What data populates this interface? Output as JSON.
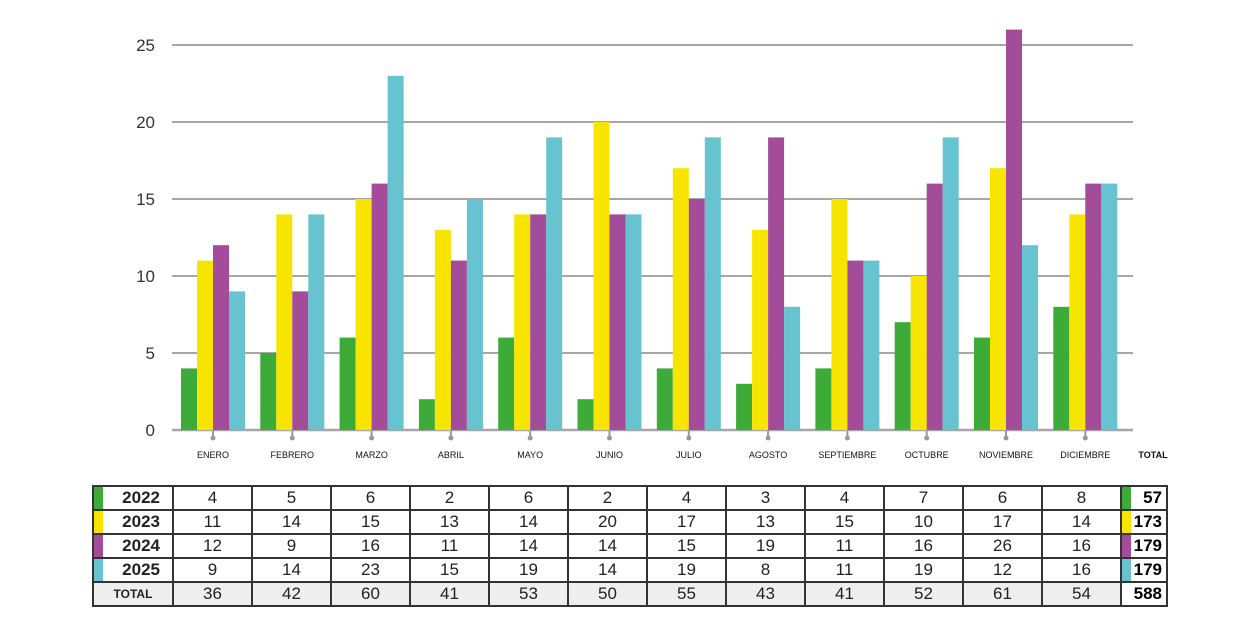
{
  "chart_data": {
    "type": "bar",
    "categories": [
      "ENERO",
      "FEBRERO",
      "MARZO",
      "ABRIL",
      "MAYO",
      "JUNIO",
      "JULIO",
      "AGOSTO",
      "SEPTIEMBRE",
      "OCTUBRE",
      "NOVIEMBRE",
      "DICIEMBRE"
    ],
    "series": [
      {
        "name": "2022",
        "color": "#3dab37",
        "values": [
          4,
          5,
          6,
          2,
          6,
          2,
          4,
          3,
          4,
          7,
          6,
          8
        ],
        "total": "57"
      },
      {
        "name": "2023",
        "color": "#f7e500",
        "values": [
          11,
          14,
          15,
          13,
          14,
          20,
          17,
          13,
          15,
          10,
          17,
          14
        ],
        "total": "173"
      },
      {
        "name": "2024",
        "color": "#a24c9a",
        "values": [
          12,
          9,
          16,
          11,
          14,
          14,
          15,
          19,
          11,
          16,
          26,
          16
        ],
        "total": "179"
      },
      {
        "name": "2025",
        "color": "#66c3cf",
        "values": [
          9,
          14,
          23,
          15,
          19,
          14,
          19,
          8,
          11,
          19,
          12,
          16
        ],
        "total": "179"
      }
    ],
    "yticks": [
      "0",
      "5",
      "10",
      "15",
      "20",
      "25"
    ],
    "ylim": [
      0,
      26
    ],
    "grid": true,
    "title": "",
    "xlabel": "",
    "ylabel": ""
  },
  "table": {
    "total_header": "TOTAL",
    "total_label": "TOTAL",
    "month_totals": [
      "36",
      "42",
      "60",
      "41",
      "53",
      "50",
      "55",
      "43",
      "41",
      "52",
      "61",
      "54"
    ],
    "grand_total": "588"
  },
  "colors": {
    "grid": "#a6a6a6",
    "axis_tick": "#999999",
    "table_border": "#333333"
  }
}
